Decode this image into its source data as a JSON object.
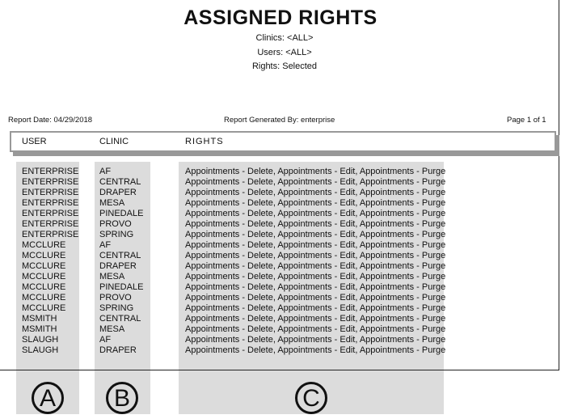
{
  "report": {
    "title": "ASSIGNED RIGHTS",
    "clinics": "Clinics: <ALL>",
    "users": "Users: <ALL>",
    "rights": "Rights: Selected",
    "date": "Report Date: 04/29/2018",
    "generated_by": "Report Generated By: enterprise",
    "page": "Page 1 of 1"
  },
  "columns": {
    "user": "USER",
    "clinic": "CLINIC",
    "rights": "RIGHTS"
  },
  "rows": [
    {
      "user": "ENTERPRISE",
      "clinic": "AF",
      "rights": "Appointments - Delete, Appointments - Edit, Appointments - Purge"
    },
    {
      "user": "ENTERPRISE",
      "clinic": "CENTRAL",
      "rights": "Appointments - Delete, Appointments - Edit, Appointments - Purge"
    },
    {
      "user": "ENTERPRISE",
      "clinic": "DRAPER",
      "rights": "Appointments - Delete, Appointments - Edit, Appointments - Purge"
    },
    {
      "user": "ENTERPRISE",
      "clinic": "MESA",
      "rights": "Appointments - Delete, Appointments - Edit, Appointments - Purge"
    },
    {
      "user": "ENTERPRISE",
      "clinic": "PINEDALE",
      "rights": "Appointments - Delete, Appointments - Edit, Appointments - Purge"
    },
    {
      "user": "ENTERPRISE",
      "clinic": "PROVO",
      "rights": "Appointments - Delete, Appointments - Edit, Appointments - Purge"
    },
    {
      "user": "ENTERPRISE",
      "clinic": "SPRING",
      "rights": "Appointments - Delete, Appointments - Edit, Appointments - Purge"
    },
    {
      "user": "MCCLURE",
      "clinic": "AF",
      "rights": "Appointments - Delete, Appointments - Edit, Appointments - Purge"
    },
    {
      "user": "MCCLURE",
      "clinic": "CENTRAL",
      "rights": "Appointments - Delete, Appointments - Edit, Appointments - Purge"
    },
    {
      "user": "MCCLURE",
      "clinic": "DRAPER",
      "rights": "Appointments - Delete, Appointments - Edit, Appointments - Purge"
    },
    {
      "user": "MCCLURE",
      "clinic": "MESA",
      "rights": "Appointments - Delete, Appointments - Edit, Appointments - Purge"
    },
    {
      "user": "MCCLURE",
      "clinic": "PINEDALE",
      "rights": "Appointments - Delete, Appointments - Edit, Appointments - Purge"
    },
    {
      "user": "MCCLURE",
      "clinic": "PROVO",
      "rights": "Appointments - Delete, Appointments - Edit, Appointments - Purge"
    },
    {
      "user": "MCCLURE",
      "clinic": "SPRING",
      "rights": "Appointments - Delete, Appointments - Edit, Appointments - Purge"
    },
    {
      "user": "MSMITH",
      "clinic": "CENTRAL",
      "rights": "Appointments - Delete, Appointments - Edit, Appointments - Purge"
    },
    {
      "user": "MSMITH",
      "clinic": "MESA",
      "rights": "Appointments - Delete, Appointments - Edit, Appointments - Purge"
    },
    {
      "user": "SLAUGH",
      "clinic": "AF",
      "rights": "Appointments - Delete, Appointments - Edit, Appointments - Purge"
    },
    {
      "user": "SLAUGH",
      "clinic": "DRAPER",
      "rights": "Appointments - Delete, Appointments - Edit, Appointments - Purge"
    }
  ],
  "callouts": [
    "A",
    "B",
    "C"
  ]
}
